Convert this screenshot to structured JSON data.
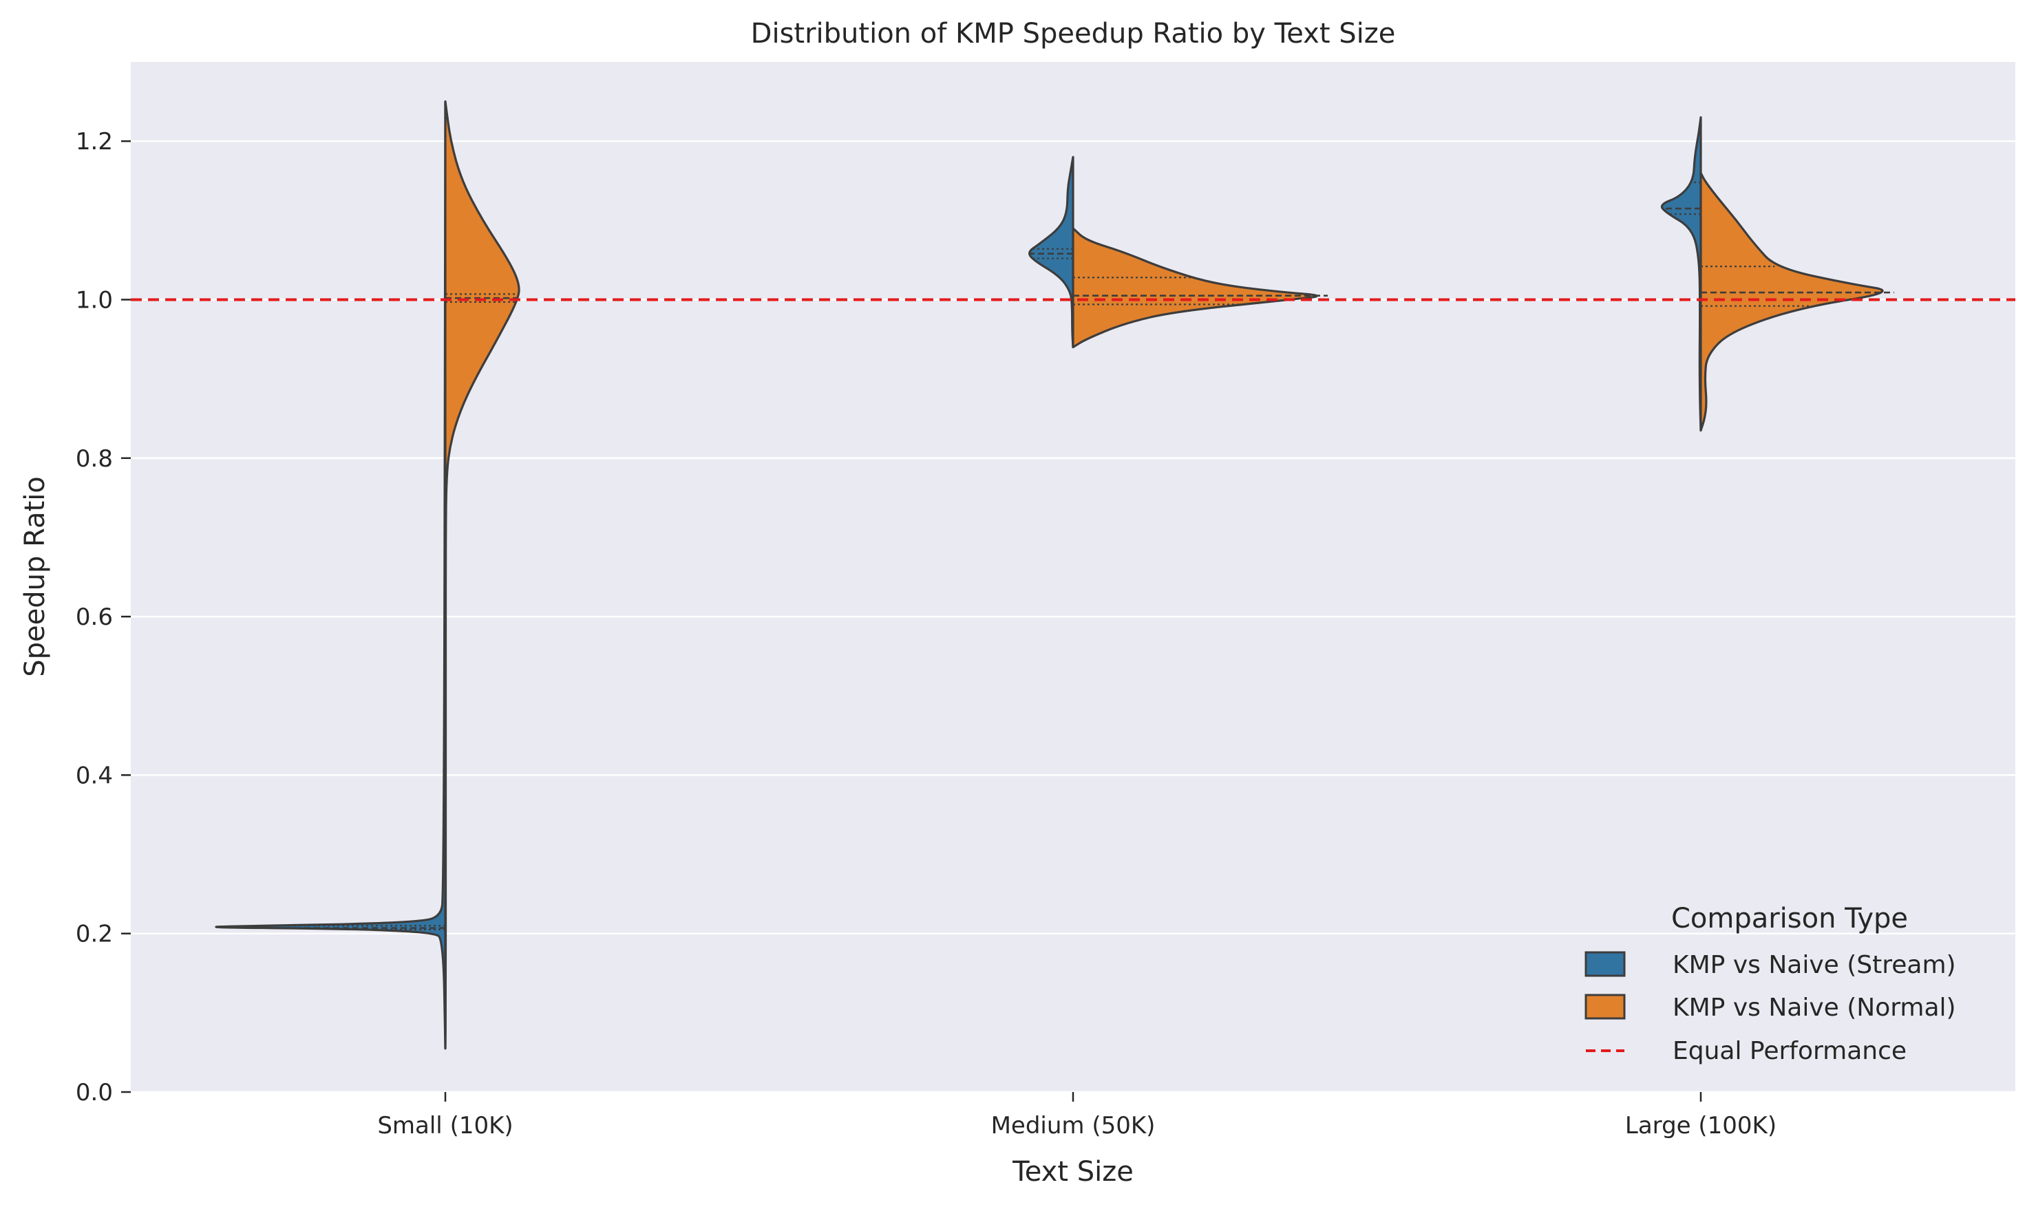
{
  "chart_data": {
    "type": "violin",
    "title": "Distribution of KMP Speedup Ratio by Text Size",
    "xlabel": "Text Size",
    "ylabel": "Speedup Ratio",
    "categories": [
      "Small (10K)",
      "Medium (50K)",
      "Large (100K)"
    ],
    "ylim": [
      0.0,
      1.3
    ],
    "yticks": [
      "0.0",
      "0.2",
      "0.4",
      "0.6",
      "0.8",
      "1.0",
      "1.2"
    ],
    "grid": true,
    "reference_line": {
      "y": 1.0,
      "label": "Equal Performance",
      "color": "#e41a1c",
      "style": "dashed"
    },
    "legend": {
      "title": "Comparison Type",
      "placement": "lower-right",
      "items": [
        "KMP vs Naive (Stream)",
        "KMP vs Naive (Normal)",
        "Equal Performance"
      ]
    },
    "series": [
      {
        "name": "KMP vs Naive (Stream)",
        "color": "#3274a1",
        "side": "left",
        "violins": [
          {
            "category": "Small (10K)",
            "quartiles": [
              0.205,
              0.207,
              0.21
            ],
            "profile": [
              [
                0.055,
                0
              ],
              [
                0.195,
                0.008
              ],
              [
                0.2,
                0.05
              ],
              [
                0.203,
                0.15
              ],
              [
                0.206,
                0.4
              ],
              [
                0.208,
                1.0
              ],
              [
                0.21,
                0.7
              ],
              [
                0.212,
                0.35
              ],
              [
                0.215,
                0.12
              ],
              [
                0.22,
                0.02
              ],
              [
                0.25,
                0.005
              ],
              [
                1.25,
                0.0
              ]
            ]
          },
          {
            "category": "Medium (50K)",
            "quartiles": [
              1.052,
              1.058,
              1.064
            ],
            "profile": [
              [
                0.94,
                0.0
              ],
              [
                0.96,
                0.02
              ],
              [
                0.99,
                0.02
              ],
              [
                1.01,
                0.05
              ],
              [
                1.03,
                0.3
              ],
              [
                1.05,
                0.88
              ],
              [
                1.06,
                1.0
              ],
              [
                1.07,
                0.75
              ],
              [
                1.09,
                0.3
              ],
              [
                1.11,
                0.13
              ],
              [
                1.14,
                0.12
              ],
              [
                1.16,
                0.06
              ],
              [
                1.18,
                0.0
              ]
            ]
          },
          {
            "category": "Large (100K)",
            "quartiles": [
              1.108,
              1.115,
              1.148
            ],
            "profile": [
              [
                0.835,
                0.0
              ],
              [
                0.87,
                0.02
              ],
              [
                0.92,
                0.03
              ],
              [
                0.98,
                0.02
              ],
              [
                1.05,
                0.03
              ],
              [
                1.09,
                0.2
              ],
              [
                1.11,
                0.85
              ],
              [
                1.12,
                1.0
              ],
              [
                1.13,
                0.5
              ],
              [
                1.15,
                0.18
              ],
              [
                1.18,
                0.15
              ],
              [
                1.21,
                0.05
              ],
              [
                1.23,
                0.0
              ]
            ]
          }
        ]
      },
      {
        "name": "KMP vs Naive (Normal)",
        "color": "#e1812c",
        "side": "right",
        "violins": [
          {
            "category": "Small (10K)",
            "quartiles": [
              0.997,
              1.002,
              1.007
            ],
            "profile": [
              [
                0.055,
                0.0
              ],
              [
                0.1,
                0.005
              ],
              [
                0.3,
                0.005
              ],
              [
                0.5,
                0.005
              ],
              [
                0.7,
                0.005
              ],
              [
                0.78,
                0.015
              ],
              [
                0.82,
                0.07
              ],
              [
                0.86,
                0.2
              ],
              [
                0.9,
                0.4
              ],
              [
                0.95,
                0.7
              ],
              [
                1.0,
                0.98
              ],
              [
                1.02,
                1.0
              ],
              [
                1.05,
                0.85
              ],
              [
                1.1,
                0.5
              ],
              [
                1.15,
                0.22
              ],
              [
                1.2,
                0.07
              ],
              [
                1.25,
                0.0
              ]
            ]
          },
          {
            "category": "Medium (50K)",
            "quartiles": [
              0.994,
              1.005,
              1.028
            ],
            "profile": [
              [
                0.94,
                0.0
              ],
              [
                0.95,
                0.05
              ],
              [
                0.97,
                0.2
              ],
              [
                0.985,
                0.4
              ],
              [
                1.0,
                0.85
              ],
              [
                1.005,
                1.0
              ],
              [
                1.01,
                0.8
              ],
              [
                1.02,
                0.55
              ],
              [
                1.04,
                0.35
              ],
              [
                1.06,
                0.2
              ],
              [
                1.075,
                0.05
              ],
              [
                1.09,
                0.0
              ]
            ]
          },
          {
            "category": "Large (100K)",
            "quartiles": [
              0.992,
              1.009,
              1.042
            ],
            "profile": [
              [
                0.835,
                0.0
              ],
              [
                0.85,
                0.02
              ],
              [
                0.87,
                0.03
              ],
              [
                0.9,
                0.02
              ],
              [
                0.93,
                0.03
              ],
              [
                0.96,
                0.15
              ],
              [
                0.99,
                0.5
              ],
              [
                1.01,
                1.0
              ],
              [
                1.02,
                0.75
              ],
              [
                1.04,
                0.38
              ],
              [
                1.07,
                0.27
              ],
              [
                1.1,
                0.18
              ],
              [
                1.13,
                0.08
              ],
              [
                1.15,
                0.02
              ],
              [
                1.16,
                0.0
              ]
            ]
          }
        ]
      }
    ]
  }
}
